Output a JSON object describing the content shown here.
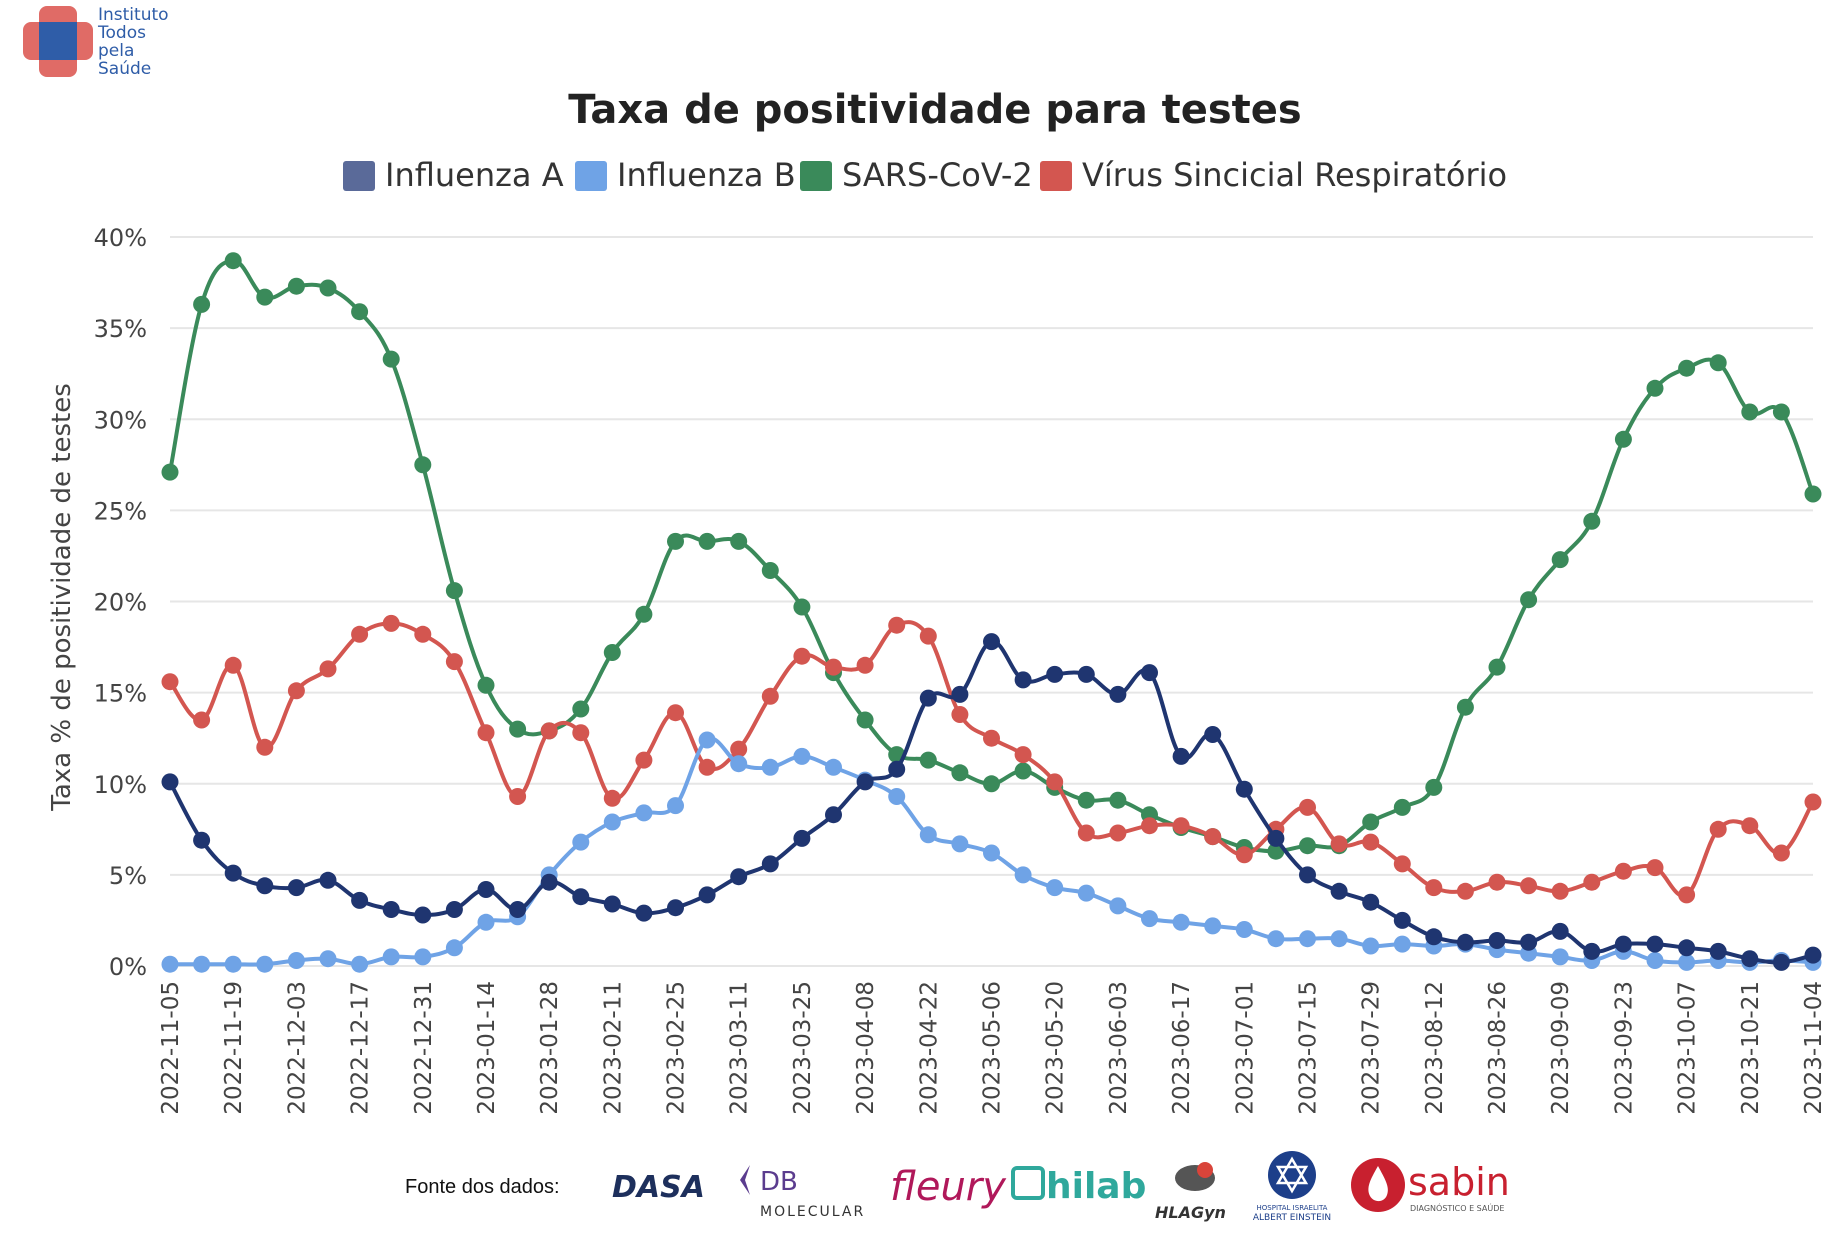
{
  "institute": {
    "name_lines": [
      "Instituto",
      "Todos",
      "pela",
      "Saúde"
    ]
  },
  "sources": {
    "label": "Fonte dos dados:",
    "logos": [
      {
        "name": "dasa",
        "text": "DASA",
        "color": "#1d2f5c"
      },
      {
        "name": "db-molecular",
        "text": "DB",
        "subtext": "MOLECULAR",
        "color": "#5b3c8e"
      },
      {
        "name": "fleury",
        "text": "fleury",
        "color": "#b0185a"
      },
      {
        "name": "hilab",
        "text": "hilab",
        "color": "#2fa89c"
      },
      {
        "name": "hlagyn",
        "text": "HLAGyn",
        "color": "#333333"
      },
      {
        "name": "einstein",
        "text": "HOSPITAL ISRAELITA",
        "subtext": "ALBERT EINSTEIN",
        "color": "#1d3f8a"
      },
      {
        "name": "sabin",
        "text": "sabin",
        "subtext": "DIAGNÓSTICO E SAÚDE",
        "color": "#c8202f"
      }
    ]
  },
  "chart_data": {
    "type": "line",
    "title": "Taxa de positividade para testes",
    "ylabel": "Taxa % de positividade de testes",
    "xlabel": "",
    "ylim": [
      0,
      40
    ],
    "yticks": [
      0,
      5,
      10,
      15,
      20,
      25,
      30,
      35,
      40
    ],
    "ytick_labels": [
      "0%",
      "5%",
      "10%",
      "15%",
      "20%",
      "25%",
      "30%",
      "35%",
      "40%"
    ],
    "grid": true,
    "legend_position": "top",
    "x": [
      "2022-11-05",
      "2022-11-12",
      "2022-11-19",
      "2022-11-26",
      "2022-12-03",
      "2022-12-10",
      "2022-12-17",
      "2022-12-24",
      "2022-12-31",
      "2023-01-07",
      "2023-01-14",
      "2023-01-21",
      "2023-01-28",
      "2023-02-04",
      "2023-02-11",
      "2023-02-18",
      "2023-02-25",
      "2023-03-04",
      "2023-03-11",
      "2023-03-18",
      "2023-03-25",
      "2023-04-01",
      "2023-04-08",
      "2023-04-15",
      "2023-04-22",
      "2023-04-29",
      "2023-05-06",
      "2023-05-13",
      "2023-05-20",
      "2023-05-27",
      "2023-06-03",
      "2023-06-10",
      "2023-06-17",
      "2023-06-24",
      "2023-07-01",
      "2023-07-08",
      "2023-07-15",
      "2023-07-22",
      "2023-07-29",
      "2023-08-05",
      "2023-08-12",
      "2023-08-19",
      "2023-08-26",
      "2023-09-02",
      "2023-09-09",
      "2023-09-16",
      "2023-09-23",
      "2023-09-30",
      "2023-10-07",
      "2023-10-14",
      "2023-10-21",
      "2023-10-28",
      "2023-11-04"
    ],
    "xtick_labels": [
      "2022-11-05",
      "2022-11-19",
      "2022-12-03",
      "2022-12-17",
      "2022-12-31",
      "2023-01-14",
      "2023-01-28",
      "2023-02-11",
      "2023-02-25",
      "2023-03-11",
      "2023-03-25",
      "2023-04-08",
      "2023-04-22",
      "2023-05-06",
      "2023-05-20",
      "2023-06-03",
      "2023-06-17",
      "2023-07-01",
      "2023-07-15",
      "2023-07-29",
      "2023-08-12",
      "2023-08-26",
      "2023-09-09",
      "2023-09-23",
      "2023-10-07",
      "2023-10-21",
      "2023-11-04"
    ],
    "series": [
      {
        "name": "Influenza A",
        "color": "#1f3570",
        "legend_color": "#5a6a99",
        "values": [
          10.1,
          6.9,
          5.1,
          4.4,
          4.3,
          4.7,
          3.6,
          3.1,
          2.8,
          3.1,
          4.2,
          3.1,
          4.6,
          3.8,
          3.4,
          2.9,
          3.2,
          3.9,
          4.9,
          5.6,
          7.0,
          8.3,
          10.1,
          10.8,
          14.7,
          14.9,
          17.8,
          15.7,
          16.0,
          16.0,
          14.9,
          16.1,
          11.5,
          12.7,
          9.7,
          7.0,
          5.0,
          4.1,
          3.5,
          2.5,
          1.6,
          1.3,
          1.4,
          1.3,
          1.9,
          0.8,
          1.2,
          1.2,
          1.0,
          0.8,
          0.4,
          0.2,
          0.6
        ]
      },
      {
        "name": "Influenza B",
        "color": "#6fa3e6",
        "legend_color": "#6fa3e6",
        "values": [
          0.1,
          0.1,
          0.1,
          0.1,
          0.3,
          0.4,
          0.1,
          0.5,
          0.5,
          1.0,
          2.4,
          2.7,
          5.0,
          6.8,
          7.9,
          8.4,
          8.8,
          12.4,
          11.1,
          10.9,
          11.5,
          10.9,
          10.2,
          9.3,
          7.2,
          6.7,
          6.2,
          5.0,
          4.3,
          4.0,
          3.3,
          2.6,
          2.4,
          2.2,
          2.0,
          1.5,
          1.5,
          1.5,
          1.1,
          1.2,
          1.1,
          1.2,
          0.9,
          0.7,
          0.5,
          0.3,
          0.8,
          0.3,
          0.2,
          0.3,
          0.2,
          0.3,
          0.2
        ]
      },
      {
        "name": "SARS-CoV-2",
        "color": "#3a8a5a",
        "legend_color": "#3a8a5a",
        "values": [
          27.1,
          36.3,
          38.7,
          36.7,
          37.3,
          37.2,
          35.9,
          33.3,
          27.5,
          20.6,
          15.4,
          13.0,
          12.9,
          14.1,
          17.2,
          19.3,
          23.3,
          23.3,
          23.3,
          21.7,
          19.7,
          16.1,
          13.5,
          11.6,
          11.3,
          10.6,
          10.0,
          10.7,
          9.8,
          9.1,
          9.1,
          8.3,
          7.6,
          7.1,
          6.5,
          6.3,
          6.6,
          6.6,
          7.9,
          8.7,
          9.8,
          14.2,
          16.4,
          20.1,
          22.3,
          24.4,
          28.9,
          31.7,
          32.8,
          33.1,
          30.4,
          30.4,
          25.9
        ]
      },
      {
        "name": "Vírus Sincicial Respiratório",
        "color": "#d35650",
        "legend_color": "#d35650",
        "values": [
          15.6,
          13.5,
          16.5,
          12.0,
          15.1,
          16.3,
          18.2,
          18.8,
          18.2,
          16.7,
          12.8,
          9.3,
          12.9,
          12.8,
          9.2,
          11.3,
          13.9,
          10.9,
          11.9,
          14.8,
          17.0,
          16.4,
          16.5,
          18.7,
          18.1,
          13.8,
          12.5,
          11.6,
          10.1,
          7.3,
          7.3,
          7.7,
          7.7,
          7.1,
          6.1,
          7.5,
          8.7,
          6.7,
          6.8,
          5.6,
          4.3,
          4.1,
          4.6,
          4.4,
          4.1,
          4.6,
          5.2,
          5.4,
          3.9,
          7.5,
          7.7,
          6.2,
          9.0
        ]
      }
    ]
  }
}
